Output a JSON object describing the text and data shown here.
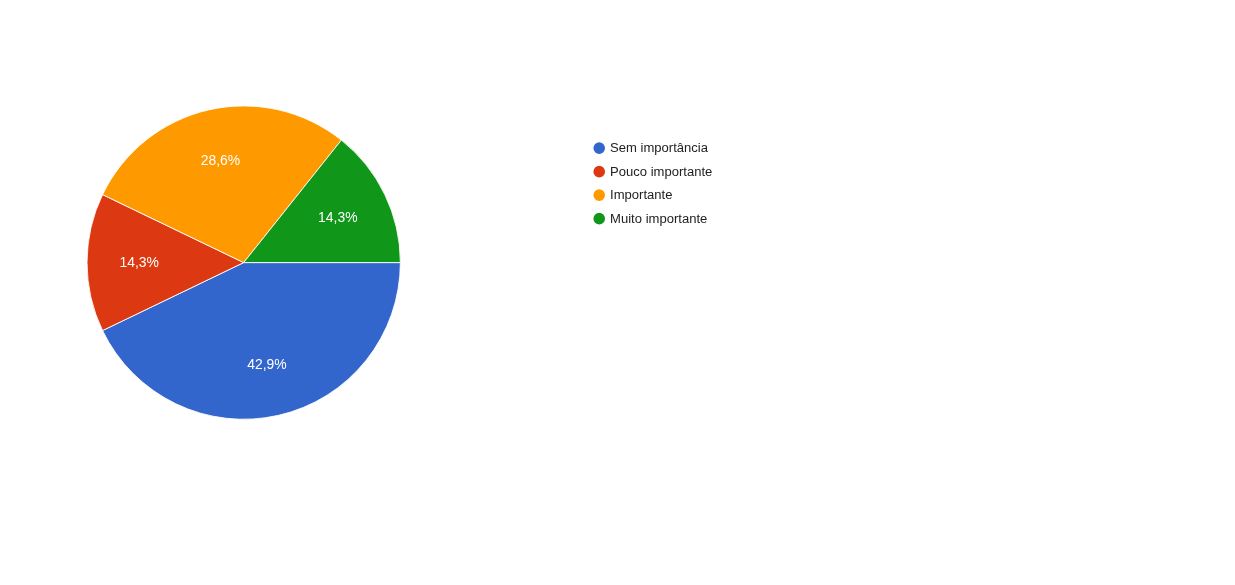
{
  "chart_data": {
    "type": "pie",
    "categories": [
      "Sem importância",
      "Pouco importante",
      "Importante",
      "Muito importante"
    ],
    "values": [
      42.9,
      14.3,
      28.6,
      14.3
    ],
    "colors": [
      "#3366cc",
      "#dc3912",
      "#ff9900",
      "#109618"
    ],
    "value_labels": [
      "42,9%",
      "14,3%",
      "28,6%",
      "14,3%"
    ],
    "legend": "top right"
  }
}
